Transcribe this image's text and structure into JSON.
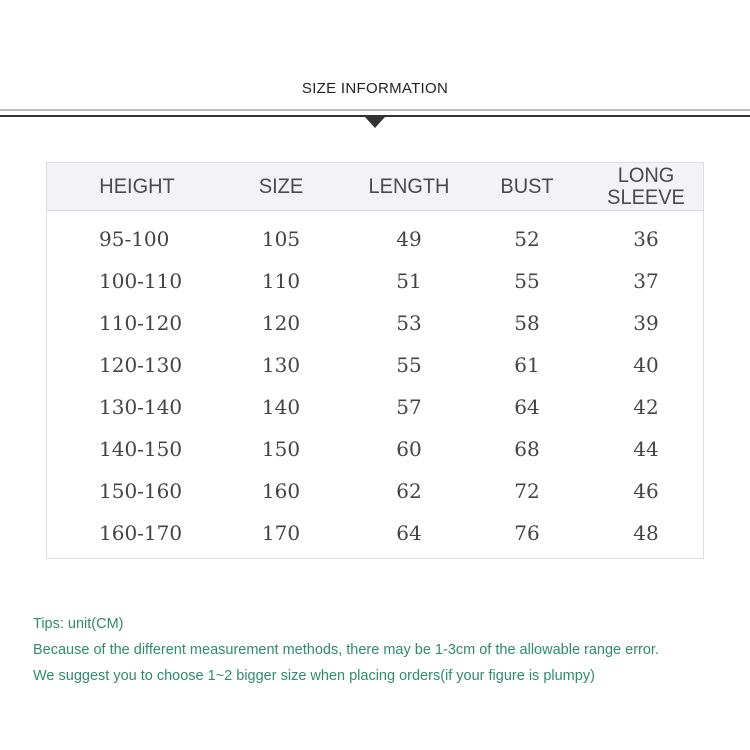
{
  "title": "SIZE INFORMATION",
  "table": {
    "headers": [
      "HEIGHT",
      "SIZE",
      "LENGTH",
      "BUST",
      "LONG\nSLEEVE"
    ],
    "rows": [
      [
        "95-100",
        "105",
        "49",
        "52",
        "36"
      ],
      [
        "100-110",
        "110",
        "51",
        "55",
        "37"
      ],
      [
        "110-120",
        "120",
        "53",
        "58",
        "39"
      ],
      [
        "120-130",
        "130",
        "55",
        "61",
        "40"
      ],
      [
        "130-140",
        "140",
        "57",
        "64",
        "42"
      ],
      [
        "140-150",
        "150",
        "60",
        "68",
        "44"
      ],
      [
        "150-160",
        "160",
        "62",
        "72",
        "46"
      ],
      [
        "160-170",
        "170",
        "64",
        "76",
        "48"
      ]
    ]
  },
  "tips": [
    "Tips: unit(CM)",
    "Because of the different measurement methods, there may be 1-3cm of the allowable range error.",
    "We suggest you to choose 1~2 bigger size when placing orders(if your figure is plumpy)"
  ],
  "colors": {
    "tips": "#2e8b6e",
    "header_bg": "#f3f3f7",
    "rule": "#333333"
  }
}
